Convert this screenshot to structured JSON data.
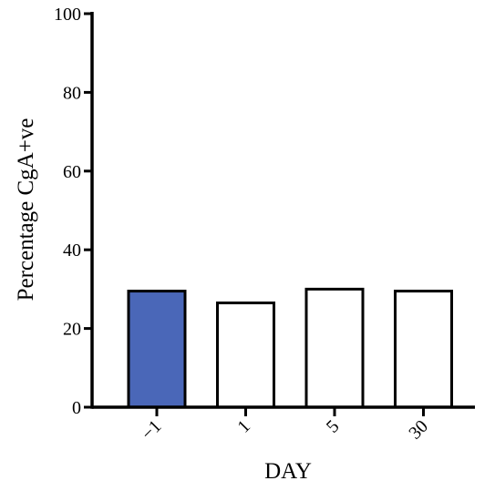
{
  "chart_data": {
    "type": "bar",
    "categories": [
      "−1",
      "1",
      "5",
      "30"
    ],
    "values": [
      29.5,
      26.5,
      30,
      29.5
    ],
    "xlabel": "DAY",
    "ylabel": "Percentage CgA+ve",
    "ylim": [
      0,
      100
    ],
    "yticks": [
      "0",
      "20",
      "40",
      "60",
      "80",
      "100"
    ],
    "grid": false,
    "legend": "none",
    "bar_colors": [
      "#4a67b8",
      "#ffffff",
      "#ffffff",
      "#ffffff"
    ],
    "bar_edge_color": "#000000"
  }
}
